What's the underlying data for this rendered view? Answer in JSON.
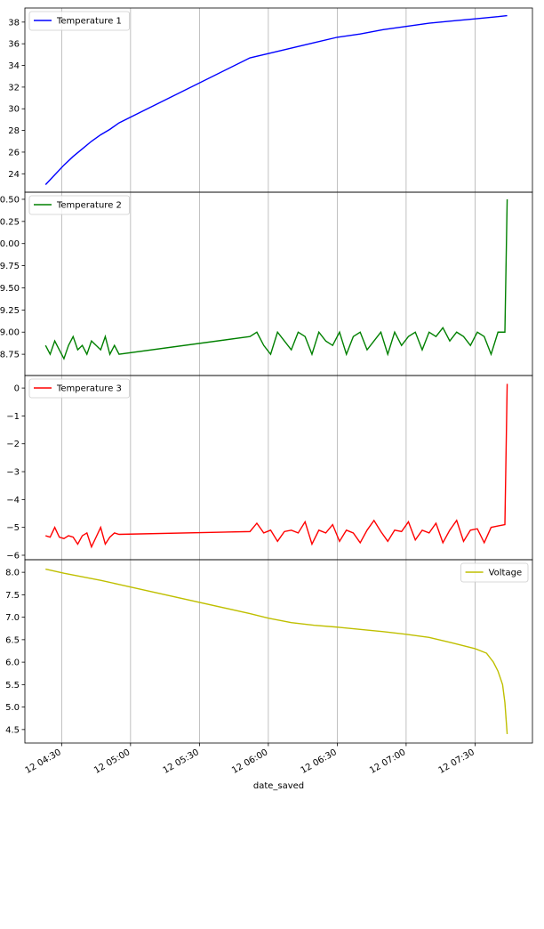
{
  "chart_data": [
    {
      "type": "line",
      "legend": "upper left",
      "grid": "x",
      "xlim": [
        "12 04:14",
        "12 07:55"
      ],
      "xticks": [
        "12 04:30",
        "12 05:00",
        "12 05:30",
        "12 06:00",
        "12 06:30",
        "12 07:00",
        "12 07:30"
      ],
      "ylim": [
        22.3,
        39.3
      ],
      "yticks": [
        24,
        26,
        28,
        30,
        32,
        34,
        36,
        38
      ],
      "x": [
        "12 04:23",
        "12 04:27",
        "12 04:31",
        "12 04:35",
        "12 04:39",
        "12 04:43",
        "12 04:47",
        "12 04:51",
        "12 04:55",
        "12 05:52",
        "12 06:00",
        "12 06:10",
        "12 06:20",
        "12 06:30",
        "12 06:40",
        "12 06:50",
        "12 07:00",
        "12 07:10",
        "12 07:20",
        "12 07:30",
        "12 07:40",
        "12 07:44"
      ],
      "series": [
        {
          "name": "Temperature 1",
          "color": "#0000ff",
          "values": [
            23.0,
            23.9,
            24.8,
            25.6,
            26.3,
            27.0,
            27.6,
            28.1,
            28.7,
            34.7,
            35.1,
            35.6,
            36.1,
            36.6,
            36.9,
            37.3,
            37.6,
            37.9,
            38.1,
            38.3,
            38.5,
            38.6
          ]
        }
      ]
    },
    {
      "type": "line",
      "legend": "upper left",
      "grid": "x",
      "xlim": [
        "12 04:14",
        "12 07:55"
      ],
      "xticks": [
        "12 04:30",
        "12 05:00",
        "12 05:30",
        "12 06:00",
        "12 06:30",
        "12 07:00",
        "12 07:30"
      ],
      "ylim": [
        8.51,
        10.58
      ],
      "yticks": [
        8.75,
        {
          "value": 9,
          "label": "9.00"
        },
        9.25,
        {
          "value": 9.5,
          "label": "9.50"
        },
        9.75,
        {
          "value": 10,
          "label": "10.00"
        },
        10.25,
        {
          "value": 10.5,
          "label": "10.50"
        }
      ],
      "x": [
        "12 04:23",
        "12 04:25",
        "12 04:27",
        "12 04:29",
        "12 04:31",
        "12 04:33",
        "12 04:35",
        "12 04:37",
        "12 04:39",
        "12 04:41",
        "12 04:43",
        "12 04:45",
        "12 04:47",
        "12 04:49",
        "12 04:51",
        "12 04:53",
        "12 04:55",
        "12 05:52",
        "12 05:55",
        "12 05:58",
        "12 06:01",
        "12 06:04",
        "12 06:07",
        "12 06:10",
        "12 06:13",
        "12 06:16",
        "12 06:19",
        "12 06:22",
        "12 06:25",
        "12 06:28",
        "12 06:31",
        "12 06:34",
        "12 06:37",
        "12 06:40",
        "12 06:43",
        "12 06:46",
        "12 06:49",
        "12 06:52",
        "12 06:55",
        "12 06:58",
        "12 07:01",
        "12 07:04",
        "12 07:07",
        "12 07:10",
        "12 07:13",
        "12 07:16",
        "12 07:19",
        "12 07:22",
        "12 07:25",
        "12 07:28",
        "12 07:31",
        "12 07:34",
        "12 07:37",
        "12 07:40",
        "12 07:43",
        "12 07:44"
      ],
      "series": [
        {
          "name": "Temperature 2",
          "color": "#008000",
          "values": [
            8.85,
            8.75,
            8.9,
            8.8,
            8.7,
            8.85,
            8.95,
            8.8,
            8.85,
            8.75,
            8.9,
            8.85,
            8.8,
            8.95,
            8.75,
            8.85,
            8.75,
            8.95,
            9.0,
            8.85,
            8.75,
            9.0,
            8.9,
            8.8,
            9.0,
            8.95,
            8.75,
            9.0,
            8.9,
            8.85,
            9.0,
            8.75,
            8.95,
            9.0,
            8.8,
            8.9,
            9.0,
            8.75,
            9.0,
            8.85,
            8.95,
            9.0,
            8.8,
            9.0,
            8.95,
            9.05,
            8.9,
            9.0,
            8.95,
            8.85,
            9.0,
            8.95,
            8.75,
            9.0,
            9.0,
            10.5
          ]
        }
      ]
    },
    {
      "type": "line",
      "legend": "upper left",
      "grid": "x",
      "xlim": [
        "12 04:14",
        "12 07:55"
      ],
      "xticks": [
        "12 04:30",
        "12 05:00",
        "12 05:30",
        "12 06:00",
        "12 06:30",
        "12 07:00",
        "12 07:30"
      ],
      "ylim": [
        -6.16,
        0.45
      ],
      "yticks": [
        {
          "value": -6,
          "label": "−6"
        },
        {
          "value": -5,
          "label": "−5"
        },
        {
          "value": -4,
          "label": "−4"
        },
        {
          "value": -3,
          "label": "−3"
        },
        {
          "value": -2,
          "label": "−2"
        },
        {
          "value": -1,
          "label": "−1"
        },
        0
      ],
      "x": [
        "12 04:23",
        "12 04:25",
        "12 04:27",
        "12 04:29",
        "12 04:31",
        "12 04:33",
        "12 04:35",
        "12 04:37",
        "12 04:39",
        "12 04:41",
        "12 04:43",
        "12 04:45",
        "12 04:47",
        "12 04:49",
        "12 04:51",
        "12 04:53",
        "12 04:55",
        "12 05:52",
        "12 05:55",
        "12 05:58",
        "12 06:01",
        "12 06:04",
        "12 06:07",
        "12 06:10",
        "12 06:13",
        "12 06:16",
        "12 06:19",
        "12 06:22",
        "12 06:25",
        "12 06:28",
        "12 06:31",
        "12 06:34",
        "12 06:37",
        "12 06:40",
        "12 06:43",
        "12 06:46",
        "12 06:49",
        "12 06:52",
        "12 06:55",
        "12 06:58",
        "12 07:01",
        "12 07:04",
        "12 07:07",
        "12 07:10",
        "12 07:13",
        "12 07:16",
        "12 07:19",
        "12 07:22",
        "12 07:25",
        "12 07:28",
        "12 07:31",
        "12 07:34",
        "12 07:37",
        "12 07:40",
        "12 07:43",
        "12 07:44"
      ],
      "series": [
        {
          "name": "Temperature 3",
          "color": "#ff0000",
          "values": [
            -5.3,
            -5.35,
            -5.0,
            -5.35,
            -5.4,
            -5.3,
            -5.35,
            -5.6,
            -5.3,
            -5.2,
            -5.7,
            -5.35,
            -5.0,
            -5.6,
            -5.35,
            -5.2,
            -5.25,
            -5.15,
            -4.85,
            -5.2,
            -5.1,
            -5.5,
            -5.15,
            -5.1,
            -5.2,
            -4.8,
            -5.6,
            -5.1,
            -5.2,
            -4.9,
            -5.5,
            -5.1,
            -5.2,
            -5.55,
            -5.1,
            -4.75,
            -5.15,
            -5.5,
            -5.1,
            -5.15,
            -4.8,
            -5.45,
            -5.1,
            -5.2,
            -4.85,
            -5.55,
            -5.1,
            -4.75,
            -5.5,
            -5.1,
            -5.05,
            -5.55,
            -5.0,
            -4.95,
            -4.9,
            0.15
          ]
        }
      ]
    },
    {
      "type": "line",
      "legend": "upper right",
      "grid": "x",
      "xlabel": "date_saved",
      "xlim": [
        "12 04:14",
        "12 07:55"
      ],
      "xticks": [
        "12 04:30",
        "12 05:00",
        "12 05:30",
        "12 06:00",
        "12 06:30",
        "12 07:00",
        "12 07:30"
      ],
      "ylim": [
        4.2,
        8.28
      ],
      "yticks": [
        4.5,
        {
          "value": 5,
          "label": "5.0"
        },
        5.5,
        {
          "value": 6,
          "label": "6.0"
        },
        6.5,
        {
          "value": 7,
          "label": "7.0"
        },
        7.5,
        {
          "value": 8,
          "label": "8.0"
        }
      ],
      "x": [
        "12 04:23",
        "12 04:31",
        "12 04:39",
        "12 04:47",
        "12 04:55",
        "12 05:52",
        "12 06:00",
        "12 06:10",
        "12 06:20",
        "12 06:30",
        "12 06:40",
        "12 06:50",
        "12 07:00",
        "12 07:10",
        "12 07:20",
        "12 07:30",
        "12 07:35",
        "12 07:38",
        "12 07:40",
        "12 07:42",
        "12 07:43",
        "12 07:44"
      ],
      "series": [
        {
          "name": "Voltage",
          "color": "#bfbf00",
          "values": [
            8.07,
            7.98,
            7.9,
            7.82,
            7.73,
            7.08,
            6.98,
            6.88,
            6.82,
            6.78,
            6.73,
            6.68,
            6.62,
            6.55,
            6.43,
            6.3,
            6.2,
            6.0,
            5.8,
            5.5,
            5.1,
            4.4
          ]
        }
      ]
    }
  ]
}
